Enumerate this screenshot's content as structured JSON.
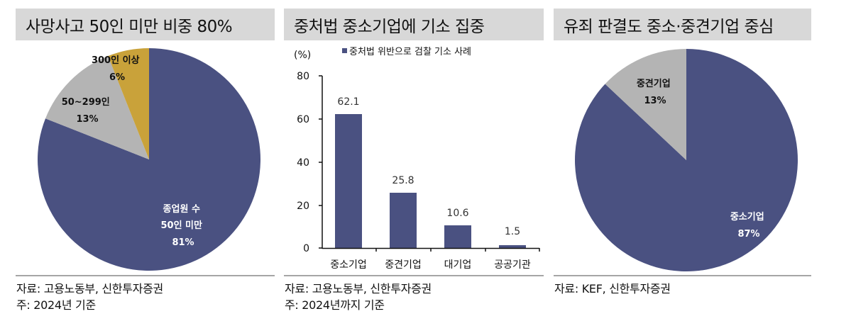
{
  "colors": {
    "navy": "#4a5181",
    "gray": "#b4b4b4",
    "gold": "#c9a23a",
    "title_bg": "#d8d8d8",
    "divider": "#a6a6a6"
  },
  "panels": [
    {
      "title": "사망사고 50인 미만 비중 80%",
      "source_lines": [
        "자료: 고용노동부, 신한투자증권",
        "주: 2024년 기준"
      ],
      "slices": [
        {
          "label_lines": [
            "종업원 수",
            "50인 미만",
            "81%"
          ]
        },
        {
          "label_lines": [
            "50~299인",
            "13%"
          ]
        },
        {
          "label_lines": [
            "300인 이상",
            "6%"
          ]
        }
      ]
    },
    {
      "title": "중처법 중소기업에 기소 집중",
      "source_lines": [
        "자료: 고용노동부, 신한투자증권",
        "주: 2024년까지 기준"
      ],
      "unit": "(%)",
      "legend": "중처법 위반으로 검찰 기소 사례",
      "y_ticks": [
        "80",
        "60",
        "40",
        "20",
        "0"
      ],
      "bars": [
        {
          "category": "중소기업",
          "value_label": "62.1"
        },
        {
          "category": "중견기업",
          "value_label": "25.8"
        },
        {
          "category": "대기업",
          "value_label": "10.6"
        },
        {
          "category": "공공기관",
          "value_label": "1.5"
        }
      ]
    },
    {
      "title": "유죄 판결도 중소·중견기업 중심",
      "source_lines": [
        "자료: KEF, 신한투자증권"
      ],
      "slices": [
        {
          "label_lines": [
            "중소기업",
            "87%"
          ]
        },
        {
          "label_lines": [
            "중견기업",
            "13%"
          ]
        }
      ]
    }
  ],
  "chart_data": [
    {
      "type": "pie",
      "title": "사망사고 50인 미만 비중 80%",
      "labels": [
        "종업원 수 50인 미만",
        "50~299인",
        "300인 이상"
      ],
      "values": [
        81,
        13,
        6
      ],
      "unit": "%",
      "colors": [
        "#4a5181",
        "#b4b4b4",
        "#c9a23a"
      ],
      "source": "자료: 고용노동부, 신한투자증권",
      "note": "주: 2024년 기준"
    },
    {
      "type": "bar",
      "title": "중처법 중소기업에 기소 집중",
      "categories": [
        "중소기업",
        "중견기업",
        "대기업",
        "공공기관"
      ],
      "series": [
        {
          "name": "중처법 위반으로 검찰 기소 사례",
          "values": [
            62.1,
            25.8,
            10.6,
            1.5
          ]
        }
      ],
      "xlabel": "",
      "ylabel": "(%)",
      "ylim": [
        0,
        80
      ],
      "yticks": [
        0,
        20,
        40,
        60,
        80
      ],
      "grid": false,
      "legend_position": "top",
      "source": "자료: 고용노동부, 신한투자증권",
      "note": "주: 2024년까지 기준"
    },
    {
      "type": "pie",
      "title": "유죄 판결도 중소·중견기업 중심",
      "labels": [
        "중소기업",
        "중견기업"
      ],
      "values": [
        87,
        13
      ],
      "unit": "%",
      "colors": [
        "#4a5181",
        "#b4b4b4"
      ],
      "source": "자료: KEF, 신한투자증권"
    }
  ]
}
